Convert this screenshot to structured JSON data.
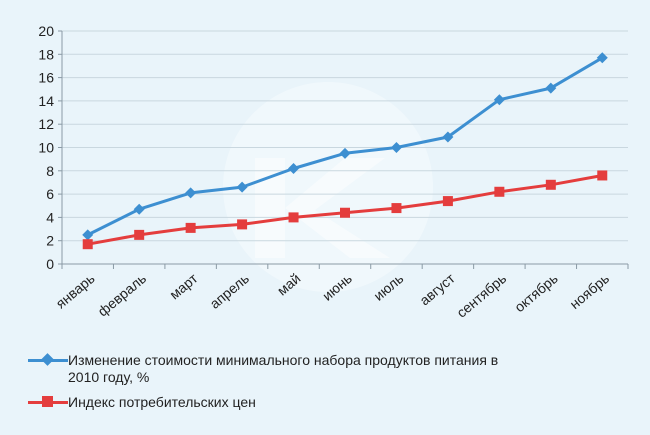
{
  "chart_data": {
    "type": "line",
    "categories": [
      "январь",
      "февраль",
      "март",
      "апрель",
      "май",
      "июнь",
      "июль",
      "август",
      "сентябрь",
      "октябрь",
      "ноябрь"
    ],
    "series": [
      {
        "name": "Изменение стоимости минимального набора продуктов питания в 2010 году, %",
        "color": "#3d8fd1",
        "marker": "diamond",
        "values": [
          2.5,
          4.7,
          6.1,
          6.6,
          8.2,
          9.5,
          10.0,
          10.9,
          14.1,
          15.1,
          17.7
        ]
      },
      {
        "name": "Индекс  потребительских цен",
        "color": "#e43d3d",
        "marker": "square",
        "values": [
          1.7,
          2.5,
          3.1,
          3.4,
          4.0,
          4.4,
          4.8,
          5.4,
          6.2,
          6.8,
          7.6
        ]
      }
    ],
    "ylim": [
      0,
      20
    ],
    "yticks": [
      "0",
      "2",
      "4",
      "6",
      "8",
      "10",
      "12",
      "14",
      "16",
      "18",
      "20"
    ],
    "grid": true,
    "legend_position": "bottom",
    "watermark": "KF-logo"
  }
}
